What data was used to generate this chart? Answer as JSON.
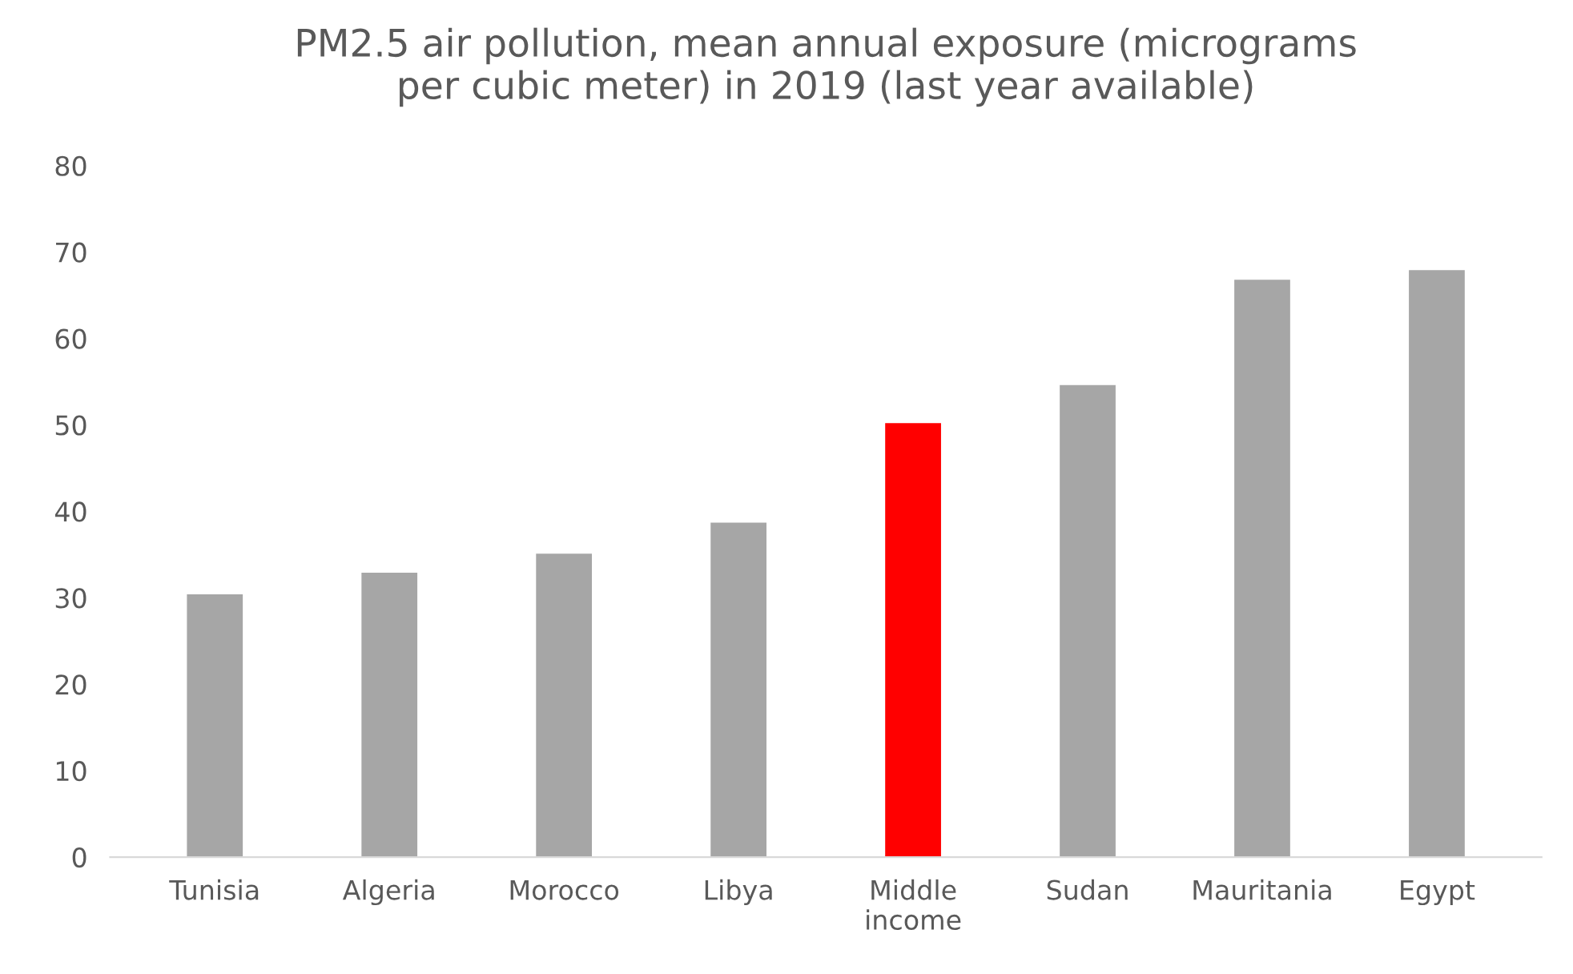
{
  "chart_data": {
    "type": "bar",
    "title": "PM2.5 air pollution, mean annual exposure (micrograms\nper cubic meter) in 2019 (last year available)",
    "categories": [
      "Tunisia",
      "Algeria",
      "Morocco",
      "Libya",
      "Middle\nincome",
      "Sudan",
      "Mauritania",
      "Egypt"
    ],
    "values": [
      30.4,
      32.9,
      35.1,
      38.7,
      50.2,
      54.6,
      66.8,
      67.9
    ],
    "colors": [
      "#a6a6a6",
      "#a6a6a6",
      "#a6a6a6",
      "#a6a6a6",
      "#ff0000",
      "#a6a6a6",
      "#a6a6a6",
      "#a6a6a6"
    ],
    "ylim": [
      0,
      80
    ],
    "yticks": [
      0,
      10,
      20,
      30,
      40,
      50,
      60,
      70,
      80
    ],
    "grid": false
  }
}
